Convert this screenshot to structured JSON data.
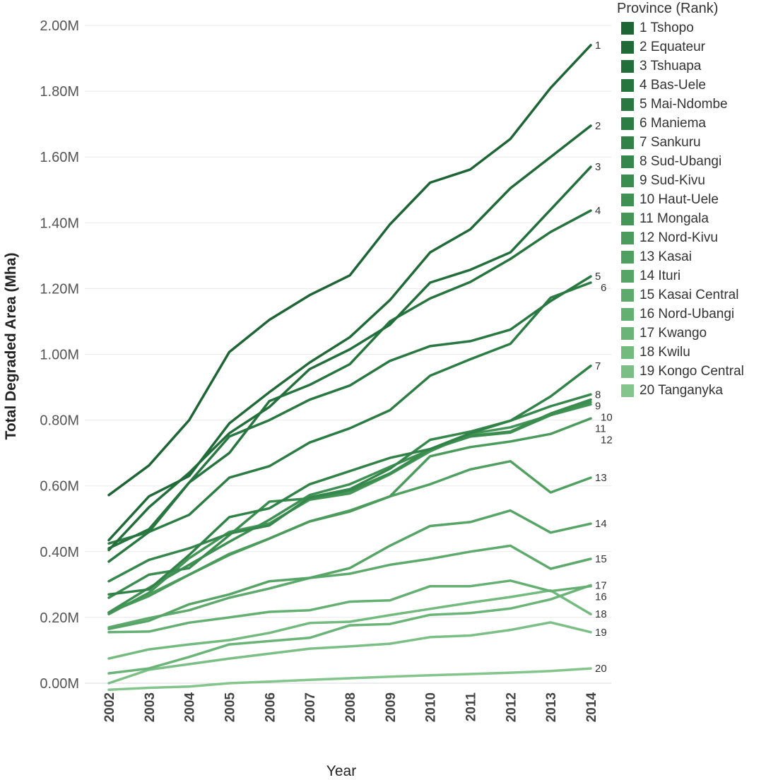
{
  "chart_data": {
    "type": "line",
    "title": "",
    "xlabel": "Year",
    "ylabel": "Total Degraded Area (Mha)",
    "x": [
      "2002",
      "2003",
      "2004",
      "2005",
      "2006",
      "2007",
      "2008",
      "2009",
      "2010",
      "2011",
      "2012",
      "2013",
      "2014"
    ],
    "ylim": [
      -0.04,
      2.04
    ],
    "yticks": [
      "0.00M",
      "0.20M",
      "0.40M",
      "0.60M",
      "0.80M",
      "1.00M",
      "1.20M",
      "1.40M",
      "1.60M",
      "1.80M",
      "2.00M"
    ],
    "ytick_values": [
      0,
      0.2,
      0.4,
      0.6,
      0.8,
      1.0,
      1.2,
      1.4,
      1.6,
      1.8,
      2.0
    ],
    "legend_title": "Province (Rank)",
    "legend_position": "top-right",
    "series": [
      {
        "rank": "1",
        "name": "1 Tshopo",
        "color": "#1e6536",
        "values": [
          0.572,
          0.662,
          0.8,
          1.007,
          1.105,
          1.18,
          1.24,
          1.395,
          1.522,
          1.562,
          1.655,
          1.81,
          1.94
        ]
      },
      {
        "rank": "2",
        "name": "2 Equateur",
        "color": "#206a38",
        "values": [
          0.435,
          0.568,
          0.63,
          0.79,
          0.885,
          0.975,
          1.052,
          1.165,
          1.31,
          1.38,
          1.505,
          1.6,
          1.695
        ]
      },
      {
        "rank": "3",
        "name": "3 Tshuapa",
        "color": "#236f3b",
        "values": [
          0.405,
          0.535,
          0.64,
          0.76,
          0.84,
          0.955,
          1.015,
          1.09,
          1.218,
          1.257,
          1.31,
          1.44,
          1.57
        ]
      },
      {
        "rank": "4",
        "name": "4 Bas-Uele",
        "color": "#26743e",
        "values": [
          0.41,
          0.468,
          0.61,
          0.7,
          0.858,
          0.907,
          0.97,
          1.1,
          1.17,
          1.22,
          1.29,
          1.372,
          1.437
        ]
      },
      {
        "rank": "5",
        "name": "5 Mai-Ndombe",
        "color": "#297841",
        "values": [
          0.37,
          0.46,
          0.61,
          0.75,
          0.8,
          0.862,
          0.905,
          0.98,
          1.025,
          1.04,
          1.075,
          1.162,
          1.237
        ]
      },
      {
        "rank": "6",
        "name": "6 Maniema",
        "color": "#2c7d44",
        "values": [
          0.425,
          0.46,
          0.512,
          0.625,
          0.66,
          0.732,
          0.775,
          0.83,
          0.935,
          0.985,
          1.032,
          1.172,
          1.218
        ]
      },
      {
        "rank": "7",
        "name": "7 Sankuru",
        "color": "#308247",
        "values": [
          0.27,
          0.285,
          0.39,
          0.505,
          0.532,
          0.605,
          0.645,
          0.685,
          0.712,
          0.76,
          0.798,
          0.872,
          0.965
        ]
      },
      {
        "rank": "8",
        "name": "8 Sud-Ubangi",
        "color": "#35874b",
        "values": [
          0.31,
          0.375,
          0.41,
          0.455,
          0.48,
          0.565,
          0.59,
          0.652,
          0.74,
          0.765,
          0.798,
          0.842,
          0.878
        ]
      },
      {
        "rank": "9",
        "name": "9 Sud-Kivu",
        "color": "#3a8c4f",
        "values": [
          0.26,
          0.33,
          0.35,
          0.45,
          0.552,
          0.562,
          0.585,
          0.638,
          0.712,
          0.752,
          0.765,
          0.82,
          0.862
        ]
      },
      {
        "rank": "10",
        "name": "10 Haut-Uele",
        "color": "#3f9153",
        "values": [
          0.215,
          0.29,
          0.36,
          0.43,
          0.497,
          0.572,
          0.605,
          0.658,
          0.71,
          0.75,
          0.762,
          0.815,
          0.855
        ]
      },
      {
        "rank": "11",
        "name": "11 Mongala",
        "color": "#449657",
        "values": [
          0.21,
          0.275,
          0.38,
          0.46,
          0.486,
          0.558,
          0.577,
          0.635,
          0.705,
          0.758,
          0.778,
          0.815,
          0.848
        ]
      },
      {
        "rank": "12",
        "name": "12 Nord-Kivu",
        "color": "#4a9b5c",
        "values": [
          0.215,
          0.265,
          0.33,
          0.393,
          0.44,
          0.492,
          0.522,
          0.568,
          0.69,
          0.718,
          0.735,
          0.758,
          0.805
        ]
      },
      {
        "rank": "13",
        "name": "13 Kasai",
        "color": "#50a061",
        "values": [
          0.215,
          0.27,
          0.33,
          0.39,
          0.44,
          0.492,
          0.525,
          0.568,
          0.605,
          0.65,
          0.675,
          0.58,
          0.625
        ]
      },
      {
        "rank": "14",
        "name": "14 Ituri",
        "color": "#56a566",
        "values": [
          0.165,
          0.19,
          0.24,
          0.27,
          0.31,
          0.32,
          0.35,
          0.418,
          0.478,
          0.49,
          0.525,
          0.458,
          0.485
        ]
      },
      {
        "rank": "15",
        "name": "15 Kasai Central",
        "color": "#5daa6c",
        "values": [
          0.17,
          0.198,
          0.222,
          0.26,
          0.288,
          0.32,
          0.333,
          0.36,
          0.378,
          0.4,
          0.418,
          0.348,
          0.378
        ]
      },
      {
        "rank": "16",
        "name": "16 Nord-Ubangi",
        "color": "#64af72",
        "values": [
          0.155,
          0.157,
          0.184,
          0.2,
          0.217,
          0.222,
          0.248,
          0.252,
          0.295,
          0.295,
          0.312,
          0.28,
          0.295
        ]
      },
      {
        "rank": "17",
        "name": "17 Kwango",
        "color": "#6bb478",
        "values": [
          0.03,
          0.045,
          0.08,
          0.118,
          0.128,
          0.138,
          0.176,
          0.18,
          0.208,
          0.213,
          0.227,
          0.255,
          0.298
        ]
      },
      {
        "rank": "18",
        "name": "18 Kwilu",
        "color": "#73ba7f",
        "values": [
          0.075,
          0.103,
          0.118,
          0.131,
          0.153,
          0.183,
          0.187,
          0.207,
          0.226,
          0.245,
          0.262,
          0.282,
          0.21
        ]
      },
      {
        "rank": "19",
        "name": "19 Kongo Central",
        "color": "#7bbf86",
        "values": [
          0.0,
          0.041,
          0.058,
          0.075,
          0.09,
          0.105,
          0.112,
          0.12,
          0.14,
          0.145,
          0.162,
          0.185,
          0.155
        ]
      },
      {
        "rank": "20",
        "name": "20 Tanganyka",
        "color": "#84c48d",
        "values": [
          -0.02,
          -0.014,
          -0.01,
          0.0,
          0.005,
          0.01,
          0.015,
          0.02,
          0.024,
          0.028,
          0.032,
          0.037,
          0.045
        ]
      }
    ]
  }
}
